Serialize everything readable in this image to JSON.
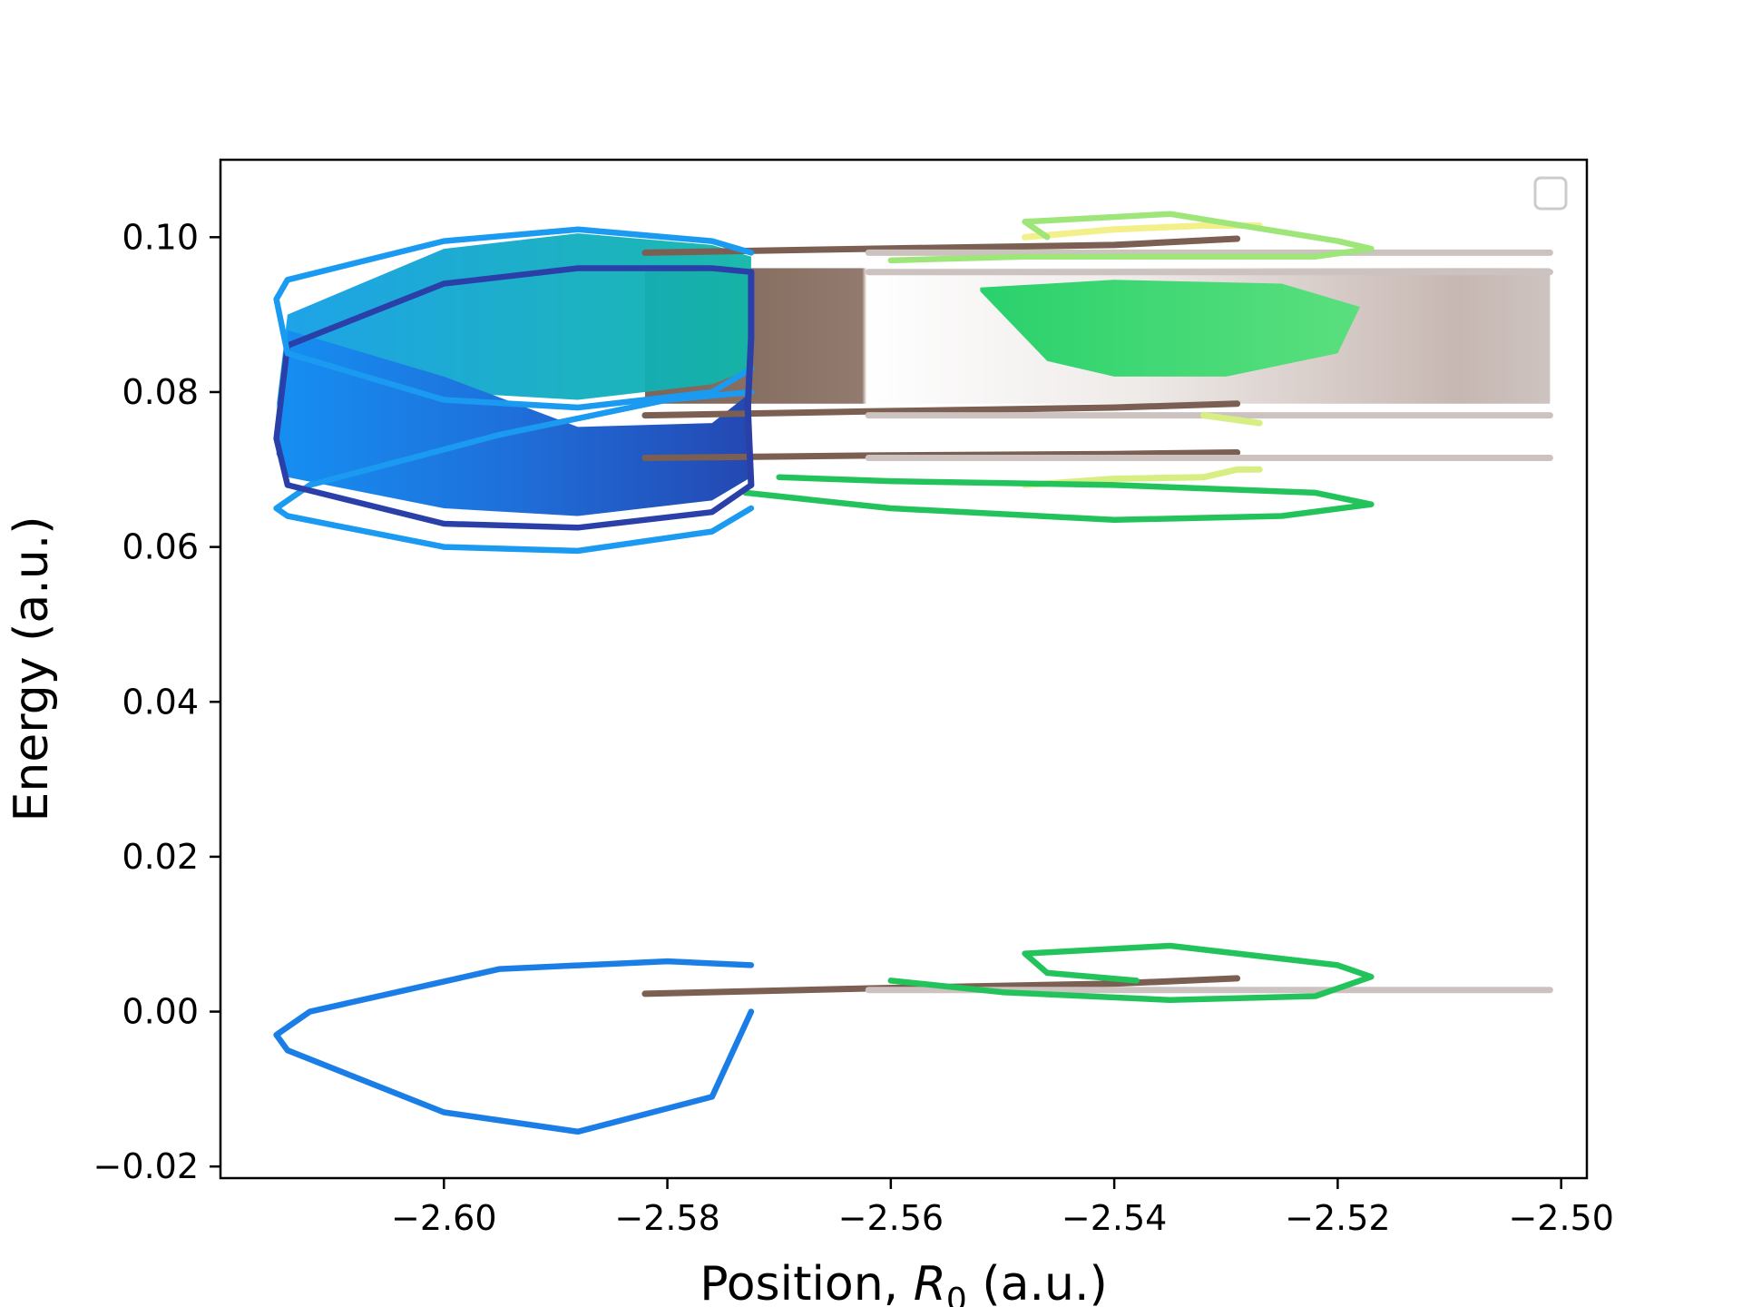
{
  "chart_data": {
    "type": "line",
    "title": "",
    "xlabel_main": "Position, ",
    "xlabel_var": "R",
    "xlabel_sub": "0",
    "xlabel_unit": " (a.u.)",
    "ylabel": "Energy (a.u.)",
    "xlim": [
      -2.62,
      -2.4977
    ],
    "ylim": [
      -0.0215,
      0.11
    ],
    "xticks": [
      -2.6,
      -2.58,
      -2.56,
      -2.54,
      -2.52,
      -2.5
    ],
    "xtick_labels": [
      "−2.60",
      "−2.58",
      "−2.56",
      "−2.54",
      "−2.52",
      "−2.50"
    ],
    "yticks": [
      -0.02,
      0.0,
      0.02,
      0.04,
      0.06,
      0.08,
      0.1
    ],
    "ytick_labels": [
      "−0.02",
      "0.00",
      "0.02",
      "0.04",
      "0.06",
      "0.08",
      "0.10"
    ],
    "grid": false,
    "legend": "top-right (empty)",
    "series": [
      {
        "group": "blue trajectory",
        "colors": [
          "#1a9af0",
          "#2a3fa8"
        ],
        "loops": [
          {
            "x": [
              -2.5725,
              -2.576,
              -2.588,
              -2.6,
              -2.614,
              -2.615,
              -2.612,
              -2.595,
              -2.58,
              -2.5725
            ],
            "y": [
              0.0,
              -0.011,
              -0.0155,
              -0.013,
              -0.005,
              -0.003,
              0.0,
              0.0055,
              0.0065,
              0.006
            ]
          },
          {
            "x": [
              -2.5725,
              -2.576,
              -2.588,
              -2.6,
              -2.614,
              -2.615,
              -2.612,
              -2.595,
              -2.58,
              -2.5725
            ],
            "y": [
              0.065,
              0.062,
              0.0595,
              0.06,
              0.064,
              0.065,
              0.068,
              0.0745,
              0.079,
              0.08
            ]
          },
          {
            "x": [
              -2.5725,
              -2.576,
              -2.588,
              -2.6,
              -2.614,
              -2.615,
              -2.614,
              -2.6,
              -2.588,
              -2.576,
              -2.5725
            ],
            "y": [
              0.068,
              0.0645,
              0.0625,
              0.063,
              0.068,
              0.074,
              0.086,
              0.094,
              0.096,
              0.096,
              0.0955
            ]
          },
          {
            "x": [
              -2.5725,
              -2.576,
              -2.588,
              -2.6,
              -2.614,
              -2.615,
              -2.614,
              -2.6,
              -2.588,
              -2.576,
              -2.5725
            ],
            "y": [
              0.083,
              0.08,
              0.078,
              0.079,
              0.085,
              0.092,
              0.0945,
              0.0995,
              0.101,
              0.0995,
              0.098
            ]
          }
        ]
      },
      {
        "group": "green trajectory",
        "colors": [
          "#22c35a",
          "#9ee67a"
        ],
        "loops": [
          {
            "x": [
              -2.56,
              -2.55,
              -2.535,
              -2.522,
              -2.517,
              -2.52,
              -2.535,
              -2.548,
              -2.546,
              -2.538
            ],
            "y": [
              0.004,
              0.0025,
              0.0015,
              0.002,
              0.0045,
              0.006,
              0.0085,
              0.0075,
              0.005,
              0.004
            ]
          },
          {
            "x": [
              -2.573,
              -2.56,
              -2.54,
              -2.525,
              -2.517,
              -2.522,
              -2.54,
              -2.56,
              -2.57
            ],
            "y": [
              0.067,
              0.065,
              0.0635,
              0.064,
              0.0655,
              0.067,
              0.068,
              0.0685,
              0.069
            ]
          },
          {
            "x": [
              -2.56,
              -2.548,
              -2.535,
              -2.522,
              -2.517,
              -2.52,
              -2.535,
              -2.548,
              -2.546
            ],
            "y": [
              0.097,
              0.0975,
              0.0975,
              0.0975,
              0.0985,
              0.0995,
              0.103,
              0.102,
              0.1
            ]
          }
        ],
        "fill": {
          "x": [
            -2.552,
            -2.546,
            -2.54,
            -2.53,
            -2.52,
            -2.518,
            -2.525,
            -2.54,
            -2.552
          ],
          "y": [
            0.093,
            0.084,
            0.082,
            0.082,
            0.085,
            0.091,
            0.094,
            0.0945,
            0.0935
          ]
        }
      },
      {
        "group": "yellow trajectory",
        "colors": [
          "#d7ef82",
          "#f3f08a"
        ],
        "lines": [
          {
            "x": [
              -2.548,
              -2.54,
              -2.532,
              -2.529,
              -2.527
            ],
            "y": [
              0.068,
              0.0688,
              0.069,
              0.07,
              0.07
            ]
          },
          {
            "x": [
              -2.548,
              -2.54,
              -2.532,
              -2.527
            ],
            "y": [
              0.1,
              0.101,
              0.1015,
              0.1015
            ]
          },
          {
            "x": [
              -2.532,
              -2.527
            ],
            "y": [
              0.077,
              0.076
            ]
          }
        ]
      },
      {
        "group": "brown trajectory",
        "colors": [
          "#7a5f52",
          "#ccc2bf"
        ],
        "lines": [
          {
            "x": [
              -2.582,
              -2.562,
              -2.54,
              -2.529
            ],
            "y": [
              0.0023,
              0.003,
              0.0036,
              0.0043
            ]
          },
          {
            "x": [
              -2.562,
              -2.54,
              -2.52,
              -2.501
            ],
            "y": [
              0.0028,
              0.0028,
              0.0028,
              0.0028
            ]
          },
          {
            "x": [
              -2.582,
              -2.562,
              -2.54,
              -2.529
            ],
            "y": [
              0.098,
              0.0985,
              0.099,
              0.0998
            ]
          },
          {
            "x": [
              -2.562,
              -2.54,
              -2.52,
              -2.501
            ],
            "y": [
              0.098,
              0.098,
              0.098,
              0.098
            ]
          },
          {
            "x": [
              -2.562,
              -2.501
            ],
            "y": [
              0.0955,
              0.0955
            ]
          },
          {
            "x": [
              -2.582,
              -2.562,
              -2.54,
              -2.529
            ],
            "y": [
              0.077,
              0.0775,
              0.078,
              0.0785
            ]
          },
          {
            "x": [
              -2.562,
              -2.501
            ],
            "y": [
              0.077,
              0.077
            ]
          },
          {
            "x": [
              -2.582,
              -2.562,
              -2.54,
              -2.529
            ],
            "y": [
              0.0715,
              0.0718,
              0.072,
              0.0722
            ]
          },
          {
            "x": [
              -2.562,
              -2.501
            ],
            "y": [
              0.0715,
              0.0715
            ]
          }
        ],
        "band": {
          "x": [
            -2.582,
            -2.501
          ],
          "y": [
            0.0785,
            0.096
          ]
        }
      }
    ]
  }
}
